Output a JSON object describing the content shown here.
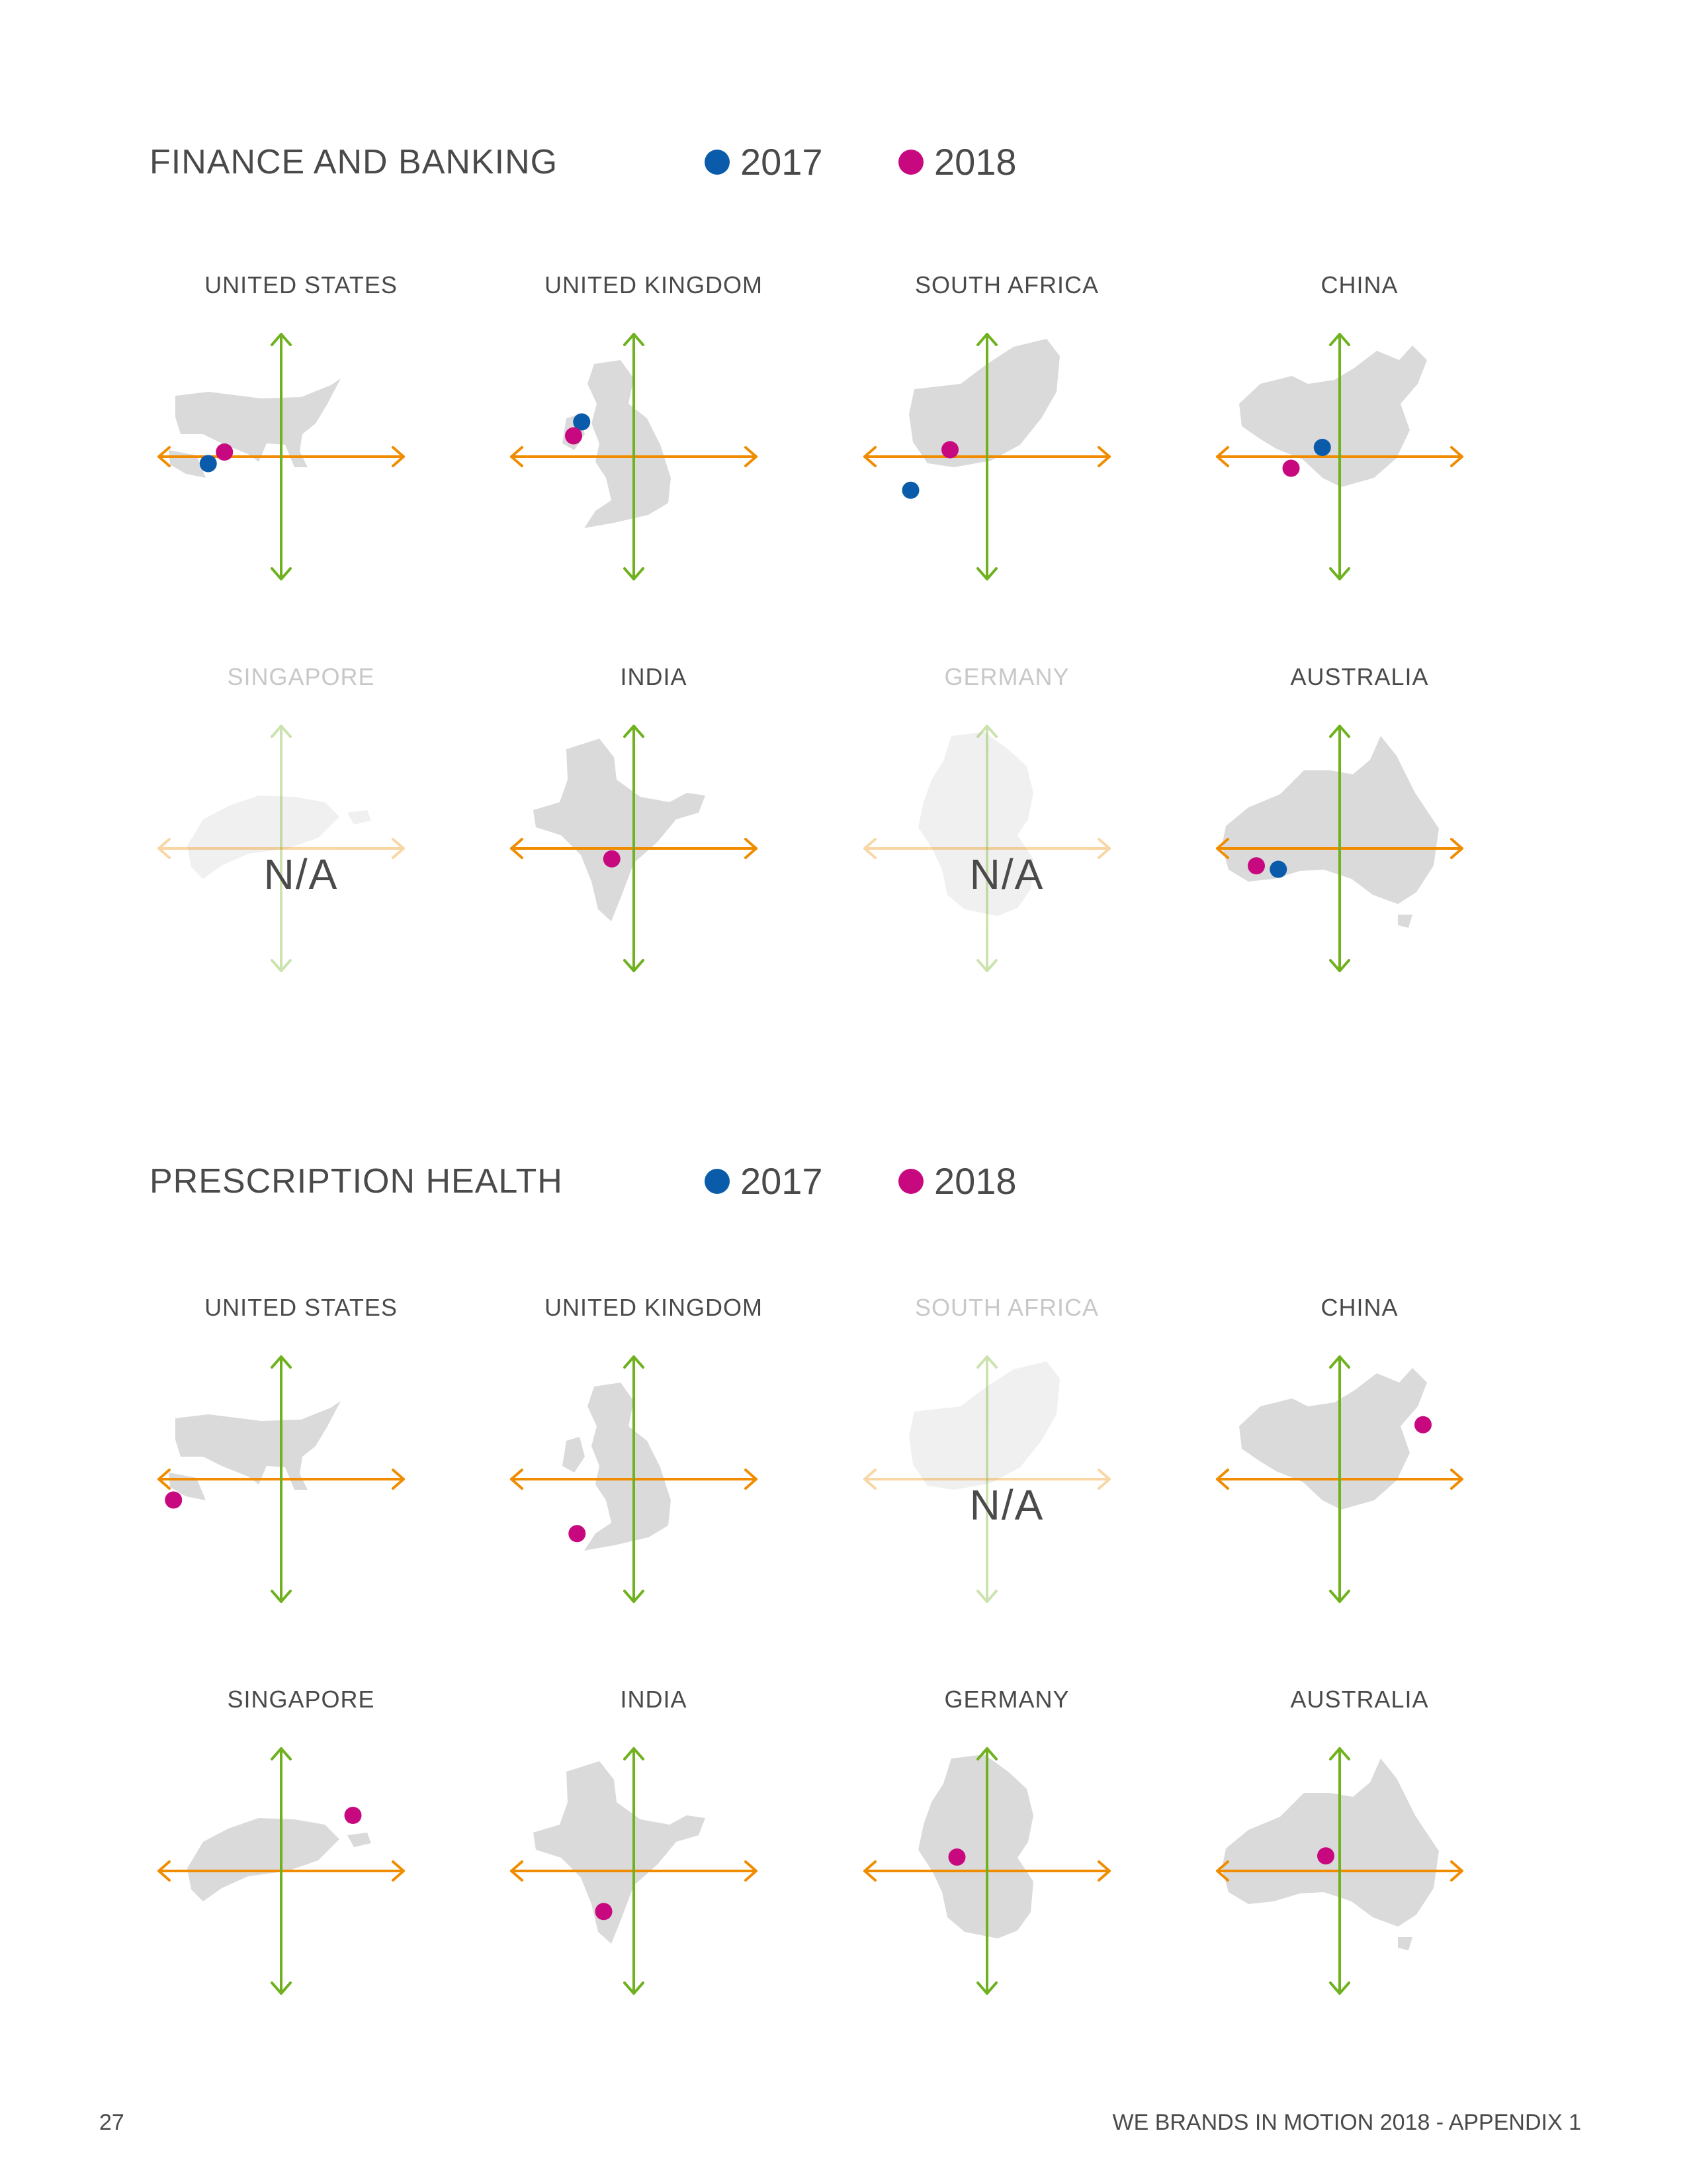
{
  "legend": {
    "year_2017": "2017",
    "year_2018": "2018",
    "color_2017": "#0a5cab",
    "color_2018": "#c8087e"
  },
  "axis_colors": {
    "horizontal": "#f08c00",
    "vertical": "#6fb11f"
  },
  "map_color": "#dadada",
  "footer": {
    "page_number": "27",
    "doc_title": "WE BRANDS IN MOTION 2018 - APPENDIX 1"
  },
  "chart_data": [
    {
      "type": "scatter",
      "title": "FINANCE AND BANKING",
      "x_range": [
        -1,
        1
      ],
      "y_range": [
        -1,
        1
      ],
      "grid": false,
      "legend_position": "top",
      "series_names": [
        "2017",
        "2018"
      ],
      "panels": [
        {
          "country": "UNITED STATES",
          "na": false,
          "points": [
            {
              "year": "2017",
              "x": -0.63,
              "y": -0.06
            },
            {
              "year": "2018",
              "x": -0.49,
              "y": 0.04
            }
          ]
        },
        {
          "country": "UNITED KINGDOM",
          "na": false,
          "points": [
            {
              "year": "2017",
              "x": -0.45,
              "y": 0.3
            },
            {
              "year": "2018",
              "x": -0.52,
              "y": 0.18
            }
          ]
        },
        {
          "country": "SOUTH AFRICA",
          "na": false,
          "points": [
            {
              "year": "2017",
              "x": -0.66,
              "y": -0.29
            },
            {
              "year": "2018",
              "x": -0.32,
              "y": 0.06
            }
          ]
        },
        {
          "country": "CHINA",
          "na": false,
          "points": [
            {
              "year": "2017",
              "x": -0.15,
              "y": 0.08
            },
            {
              "year": "2018",
              "x": -0.42,
              "y": -0.1
            }
          ]
        },
        {
          "country": "SINGAPORE",
          "na": true,
          "na_text": "N/A",
          "points": []
        },
        {
          "country": "INDIA",
          "na": false,
          "points": [
            {
              "year": "2018",
              "x": -0.19,
              "y": -0.09
            }
          ]
        },
        {
          "country": "GERMANY",
          "na": true,
          "na_text": "N/A",
          "points": []
        },
        {
          "country": "AUSTRALIA",
          "na": false,
          "points": [
            {
              "year": "2017",
              "x": -0.53,
              "y": -0.18
            },
            {
              "year": "2018",
              "x": -0.72,
              "y": -0.15
            }
          ]
        }
      ]
    },
    {
      "type": "scatter",
      "title": "PRESCRIPTION HEALTH",
      "x_range": [
        -1,
        1
      ],
      "y_range": [
        -1,
        1
      ],
      "grid": false,
      "legend_position": "top",
      "series_names": [
        "2017",
        "2018"
      ],
      "panels": [
        {
          "country": "UNITED STATES",
          "na": false,
          "points": [
            {
              "year": "2018",
              "x": -0.93,
              "y": -0.18
            }
          ]
        },
        {
          "country": "UNITED KINGDOM",
          "na": false,
          "points": [
            {
              "year": "2018",
              "x": -0.49,
              "y": -0.47
            }
          ]
        },
        {
          "country": "SOUTH AFRICA",
          "na": true,
          "na_text": "N/A",
          "points": []
        },
        {
          "country": "CHINA",
          "na": false,
          "points": [
            {
              "year": "2018",
              "x": 0.72,
              "y": 0.47
            }
          ]
        },
        {
          "country": "SINGAPORE",
          "na": false,
          "points": [
            {
              "year": "2018",
              "x": 0.62,
              "y": 0.48
            }
          ]
        },
        {
          "country": "INDIA",
          "na": false,
          "points": [
            {
              "year": "2018",
              "x": -0.26,
              "y": -0.35
            }
          ]
        },
        {
          "country": "GERMANY",
          "na": false,
          "points": [
            {
              "year": "2018",
              "x": -0.26,
              "y": 0.12
            }
          ]
        },
        {
          "country": "AUSTRALIA",
          "na": false,
          "points": [
            {
              "year": "2018",
              "x": -0.12,
              "y": 0.13
            }
          ]
        }
      ]
    }
  ]
}
